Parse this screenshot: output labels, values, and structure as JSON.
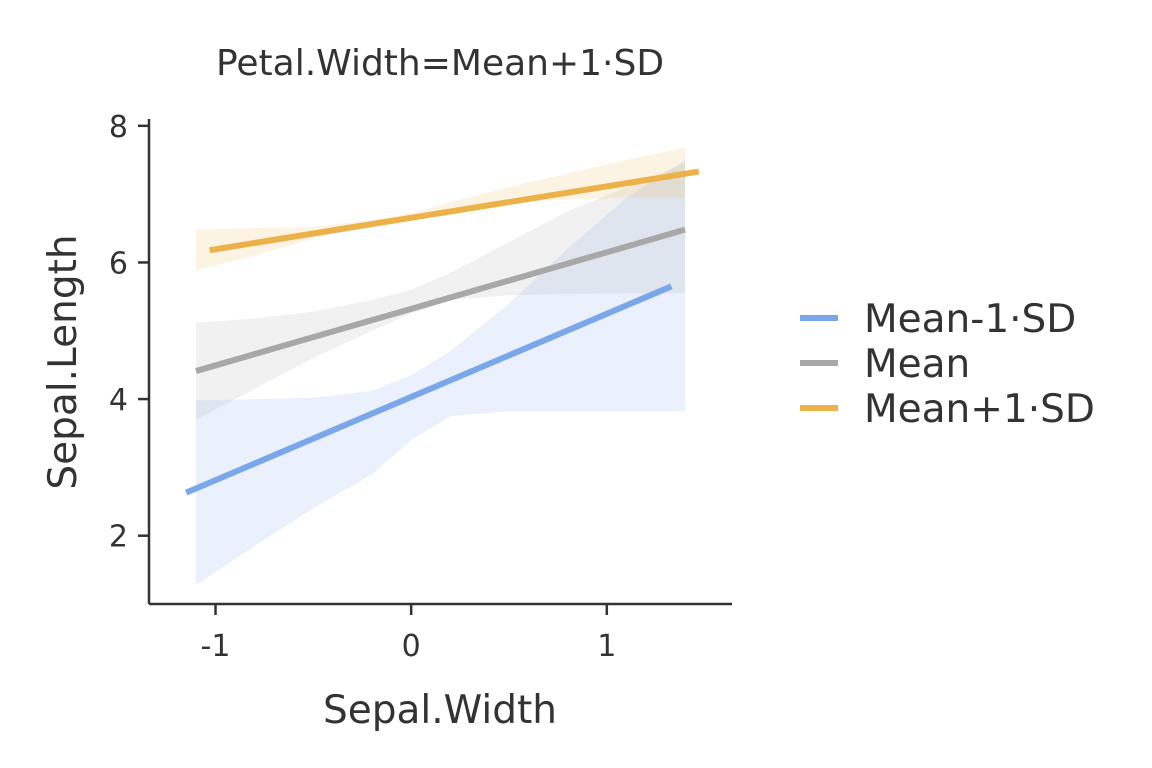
{
  "chart_data": {
    "type": "line",
    "title": "Petal.Width=Mean+1·SD",
    "xlabel": "Sepal.Width",
    "ylabel": "Sepal.Length",
    "xlim": [
      -1.34,
      1.64
    ],
    "ylim": [
      1.0,
      8.1
    ],
    "x_ticks": [
      {
        "value": -1,
        "label": "-1"
      },
      {
        "value": 0,
        "label": "0"
      },
      {
        "value": 1,
        "label": "1"
      }
    ],
    "y_ticks": [
      {
        "value": 2,
        "label": "2"
      },
      {
        "value": 4,
        "label": "4"
      },
      {
        "value": 6,
        "label": "6"
      },
      {
        "value": 8,
        "label": "8"
      }
    ],
    "grid": false,
    "legend_position": "right",
    "series": [
      {
        "name": "Mean-1·SD",
        "color": "#7AA6EA",
        "x": [
          -1.15,
          1.33
        ],
        "y": [
          2.63,
          5.65
        ],
        "ribbon": {
          "x": [
            -1.1,
            -0.8,
            -0.5,
            -0.2,
            0.0,
            0.2,
            0.5,
            0.8,
            1.1,
            1.4
          ],
          "lower": [
            1.28,
            1.85,
            2.4,
            2.9,
            3.4,
            3.75,
            3.82,
            3.82,
            3.82,
            3.82
          ],
          "upper": [
            3.98,
            4.0,
            4.02,
            4.12,
            4.35,
            4.7,
            5.4,
            6.2,
            6.95,
            7.5
          ]
        }
      },
      {
        "name": "Mean",
        "color": "#A8A8A8",
        "x": [
          -1.1,
          1.4
        ],
        "y": [
          4.41,
          6.48
        ],
        "ribbon": {
          "x": [
            -1.1,
            -0.8,
            -0.5,
            -0.2,
            0.0,
            0.2,
            0.5,
            0.8,
            1.1,
            1.4
          ],
          "lower": [
            3.7,
            4.15,
            4.6,
            5.0,
            5.25,
            5.45,
            5.52,
            5.54,
            5.55,
            5.55
          ],
          "upper": [
            5.12,
            5.18,
            5.28,
            5.45,
            5.6,
            5.85,
            6.3,
            6.75,
            7.1,
            7.45
          ]
        }
      },
      {
        "name": "Mean+1·SD",
        "color": "#EBB24A",
        "x": [
          -1.03,
          1.47
        ],
        "y": [
          6.18,
          7.33
        ],
        "ribbon": {
          "x": [
            -1.1,
            -0.8,
            -0.5,
            -0.2,
            0.0,
            0.2,
            0.5,
            0.8,
            1.1,
            1.4
          ],
          "lower": [
            5.88,
            6.1,
            6.35,
            6.55,
            6.63,
            6.75,
            6.88,
            6.92,
            6.95,
            6.95
          ],
          "upper": [
            6.48,
            6.5,
            6.52,
            6.62,
            6.72,
            6.88,
            7.1,
            7.3,
            7.5,
            7.68
          ]
        }
      }
    ]
  }
}
